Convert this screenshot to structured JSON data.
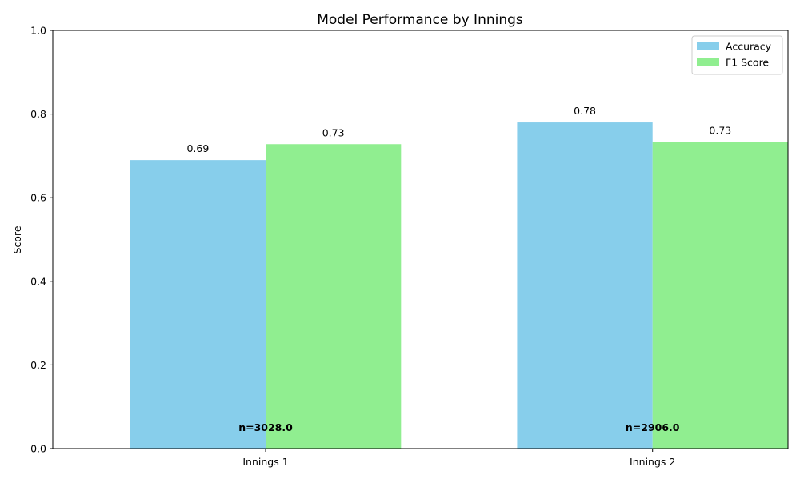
{
  "chart_data": {
    "type": "bar",
    "title": "Model Performance by Innings",
    "xlabel": "",
    "ylabel": "Score",
    "ylim": [
      0,
      1.0
    ],
    "yticks": [
      0.0,
      0.2,
      0.4,
      0.6,
      0.8,
      1.0
    ],
    "ytick_labels": [
      "0.0",
      "0.2",
      "0.4",
      "0.6",
      "0.8",
      "1.0"
    ],
    "categories": [
      "Innings 1",
      "Innings 2"
    ],
    "series": [
      {
        "name": "Accuracy",
        "color": "#87CEEB",
        "values": [
          0.69,
          0.78
        ],
        "labels": [
          "0.69",
          "0.78"
        ]
      },
      {
        "name": "F1 Score",
        "color": "#90EE90",
        "values": [
          0.728,
          0.733
        ],
        "labels": [
          "0.73",
          "0.73"
        ]
      }
    ],
    "annotations": [
      "n=3028.0",
      "n=2906.0"
    ],
    "annotation_y": 0.05,
    "legend_position": "upper right",
    "grid": false
  }
}
